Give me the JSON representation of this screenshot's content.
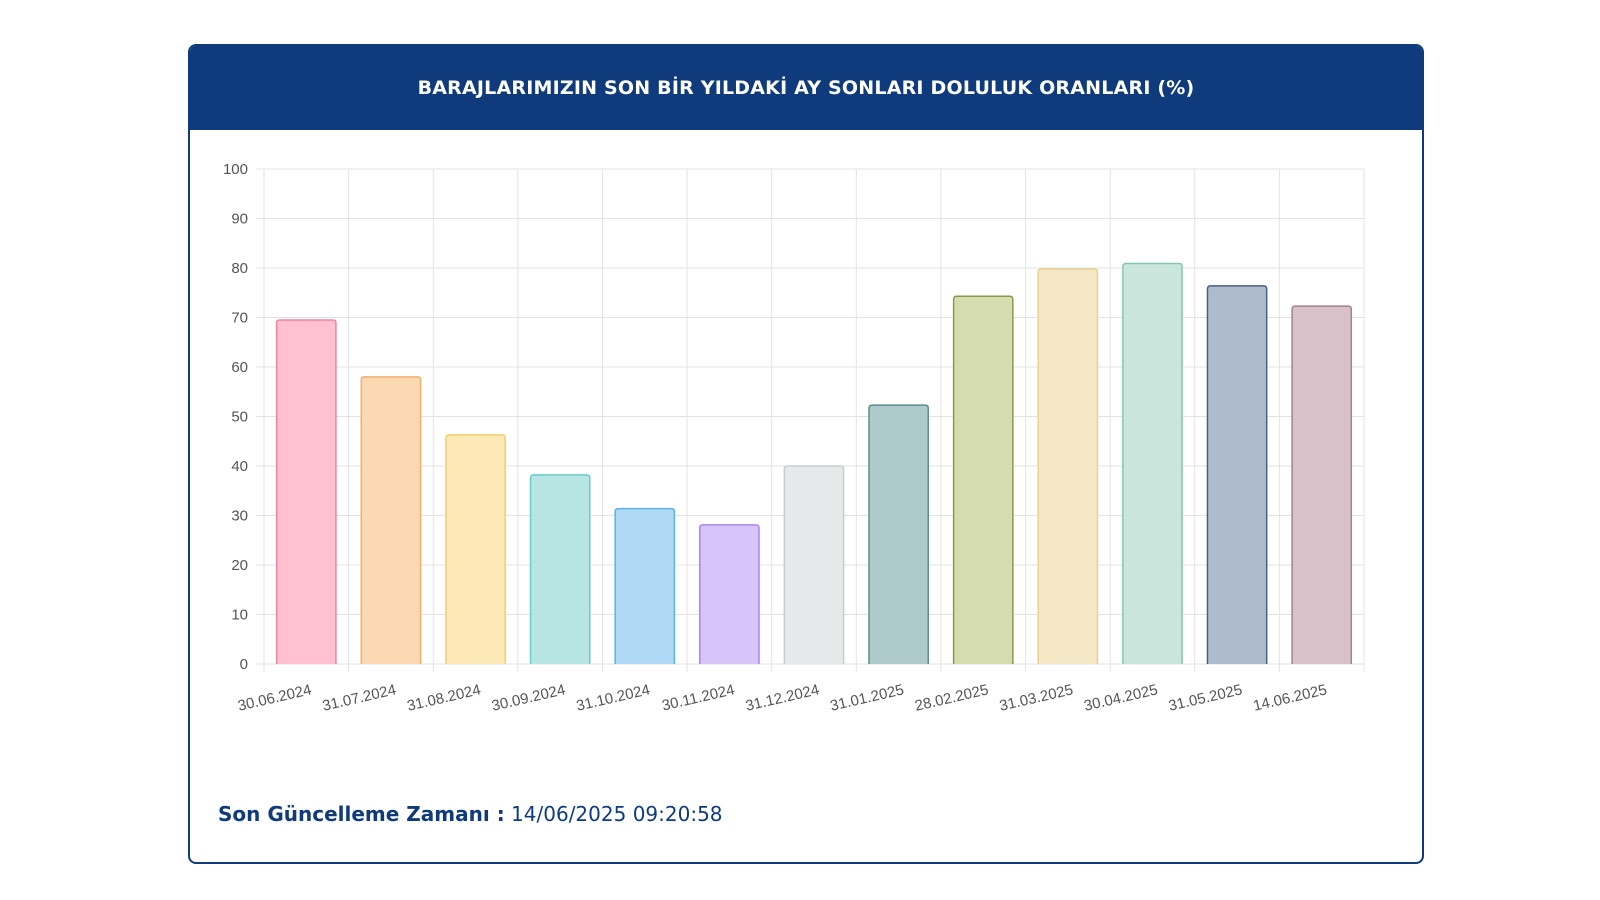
{
  "card": {
    "title": "BARAJLARIMIZIN SON BİR YILDAKİ AY SONLARI DOLULUK ORANLARI (%)"
  },
  "footer": {
    "label": "Son Güncelleme Zamanı :",
    "value": " 14/06/2025 09:20:58"
  },
  "colors": {
    "header_bg": "#0f3b7d",
    "grid": "#e3e3e3"
  },
  "chart_data": {
    "type": "bar",
    "title": "BARAJLARIMIZIN SON BİR YILDAKİ AY SONLARI DOLULUK ORANLARI (%)",
    "xlabel": "",
    "ylabel": "",
    "ylim": [
      0,
      100
    ],
    "yticks": [
      0,
      10,
      20,
      30,
      40,
      50,
      60,
      70,
      80,
      90,
      100
    ],
    "grid": true,
    "categories": [
      "30.06.2024",
      "31.07.2024",
      "31.08.2024",
      "30.09.2024",
      "31.10.2024",
      "30.11.2024",
      "31.12.2024",
      "31.01.2025",
      "28.02.2025",
      "31.03.2025",
      "30.04.2025",
      "31.05.2025",
      "14.06.2025"
    ],
    "values": [
      69.5,
      58,
      46.3,
      38.2,
      31.4,
      28.1,
      40,
      52.3,
      74.3,
      79.8,
      80.9,
      76.4,
      72.3
    ],
    "fill_colors": [
      "#ffc1d1",
      "#fdd9b3",
      "#fde9b7",
      "#b7e5e4",
      "#b0d9f6",
      "#d7c4fb",
      "#e7e8e9",
      "#aecacb",
      "#d5dcb0",
      "#f5e8c6",
      "#cae5dc",
      "#aebbce",
      "#d8c1c8"
    ],
    "border_colors": [
      "#f0839f",
      "#f5ad6a",
      "#f3cf66",
      "#6dcbc8",
      "#5fb1e9",
      "#a686f2",
      "#c9cbcd",
      "#5b8d91",
      "#8a9a4a",
      "#e8cf8f",
      "#83c8ae",
      "#4b5e82",
      "#a08590"
    ]
  }
}
